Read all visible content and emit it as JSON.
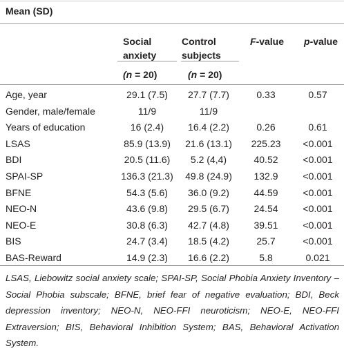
{
  "title": "Mean (SD)",
  "columns": [
    "Social anxiety",
    "Control subjects",
    "F-value",
    "p-value"
  ],
  "group_sizes": [
    "(n = 20)",
    "(n = 20)"
  ],
  "rows": [
    [
      "Age, year",
      "29.1 (7.5)",
      "27.7 (7.7)",
      "0.33",
      "0.57"
    ],
    [
      "Gender, male/female",
      "11/9",
      "11/9"
    ],
    [
      "Years of education",
      "16 (2.4)",
      "16.4 (2.2)",
      "0.26",
      "0.61"
    ],
    [
      "LSAS",
      "85.9 (13.9)",
      "21.6 (13.1)",
      "225.23",
      "<0.001"
    ],
    [
      "BDI",
      "20.5 (11.6)",
      "5.2 (4,4)",
      "40.52",
      "<0.001"
    ],
    [
      "SPAI-SP",
      "136.3 (21.3)",
      "49.8 (24.9)",
      "132.9",
      "<0.001"
    ],
    [
      "BFNE",
      "54.3 (5.6)",
      "36.0 (9.2)",
      "44.59",
      "<0.001"
    ],
    [
      "NEO-N",
      "43.6 (9.8)",
      "29.5 (6.7)",
      "24.54",
      "<0.001"
    ],
    [
      "NEO-E",
      "30.8 (6.3)",
      "42.7 (4.8)",
      "39.51",
      "<0.001"
    ],
    [
      "BIS",
      "24.7 (3.4)",
      "18.5 (4.2)",
      "25.7",
      "<0.001"
    ],
    [
      "BAS-Reward",
      "14.9 (2.3)",
      "16.6 (2.2)",
      "5.8",
      "0.021"
    ]
  ],
  "footnote": "LSAS, Liebowitz social anxiety scale; SPAI-SP, Social Phobia Anxiety Inventory – Social Phobia subscale; BFNE, brief fear of negative evaluation; BDI, Beck depression inventory; NEO-N, NEO-FFI neuroticism; NEO-E, NEO-FFI Extraversion; BIS, Behavioral Inhibition System; BAS, Behavioral Activation System."
}
